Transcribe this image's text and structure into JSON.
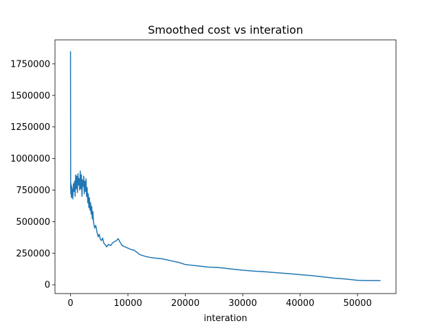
{
  "chart_data": {
    "type": "line",
    "title": "Smoothed cost vs interation",
    "xlabel": "interation",
    "ylabel": "",
    "xlim": [
      -2700,
      56700
    ],
    "ylim": [
      -70000,
      1940000
    ],
    "xticks": [
      0,
      10000,
      20000,
      30000,
      40000,
      50000
    ],
    "xtick_labels": [
      "0",
      "10000",
      "20000",
      "30000",
      "40000",
      "50000"
    ],
    "yticks": [
      0,
      250000,
      500000,
      750000,
      1000000,
      1250000,
      1500000,
      1750000
    ],
    "ytick_labels": [
      "0",
      "250000",
      "500000",
      "750000",
      "1000000",
      "1250000",
      "1500000",
      "1750000"
    ],
    "grid": false,
    "line_color": "#1f77b4",
    "series": [
      {
        "x": [
          0,
          30,
          60,
          100,
          150,
          200,
          250,
          300,
          400,
          500,
          600,
          700,
          800,
          900,
          1000,
          1100,
          1200,
          1300,
          1400,
          1500,
          1600,
          1700,
          1800,
          1900,
          2000,
          2100,
          2200,
          2300,
          2400,
          2500,
          2600,
          2700,
          2800,
          2900,
          3000,
          3100,
          3200,
          3300,
          3400,
          3500,
          3600,
          3700,
          3800,
          3900,
          4000,
          4200,
          4400,
          4600,
          4800,
          5000,
          5200,
          5400,
          5600,
          5800,
          6000,
          6300,
          6600,
          7000,
          7300,
          7600,
          8000,
          8300,
          8600,
          9000,
          9500,
          10000,
          10500,
          11000,
          11500,
          12000,
          13000,
          14000,
          15000,
          16000,
          17000,
          18000,
          19000,
          20000,
          21000,
          22000,
          23000,
          24000,
          25000,
          26000,
          27000,
          28000,
          29000,
          30000,
          32000,
          34000,
          36000,
          38000,
          40000,
          42000,
          44000,
          46000,
          48000,
          50000,
          52000,
          54000
        ],
        "y": [
          1850000,
          760000,
          720000,
          800000,
          690000,
          780000,
          700000,
          760000,
          680000,
          800000,
          740000,
          820000,
          700000,
          870000,
          760000,
          860000,
          730000,
          880000,
          790000,
          840000,
          750000,
          900000,
          760000,
          870000,
          700000,
          830000,
          780000,
          860000,
          720000,
          820000,
          740000,
          840000,
          700000,
          770000,
          650000,
          720000,
          610000,
          690000,
          590000,
          650000,
          560000,
          620000,
          520000,
          580000,
          500000,
          450000,
          470000,
          420000,
          380000,
          400000,
          360000,
          350000,
          370000,
          330000,
          320000,
          300000,
          320000,
          310000,
          330000,
          340000,
          350000,
          365000,
          340000,
          310000,
          300000,
          290000,
          280000,
          275000,
          260000,
          240000,
          225000,
          215000,
          210000,
          205000,
          195000,
          185000,
          175000,
          160000,
          155000,
          150000,
          145000,
          140000,
          138000,
          135000,
          130000,
          125000,
          120000,
          115000,
          108000,
          102000,
          95000,
          88000,
          80000,
          72000,
          62000,
          52000,
          45000,
          35000,
          33000,
          33000
        ]
      }
    ]
  }
}
